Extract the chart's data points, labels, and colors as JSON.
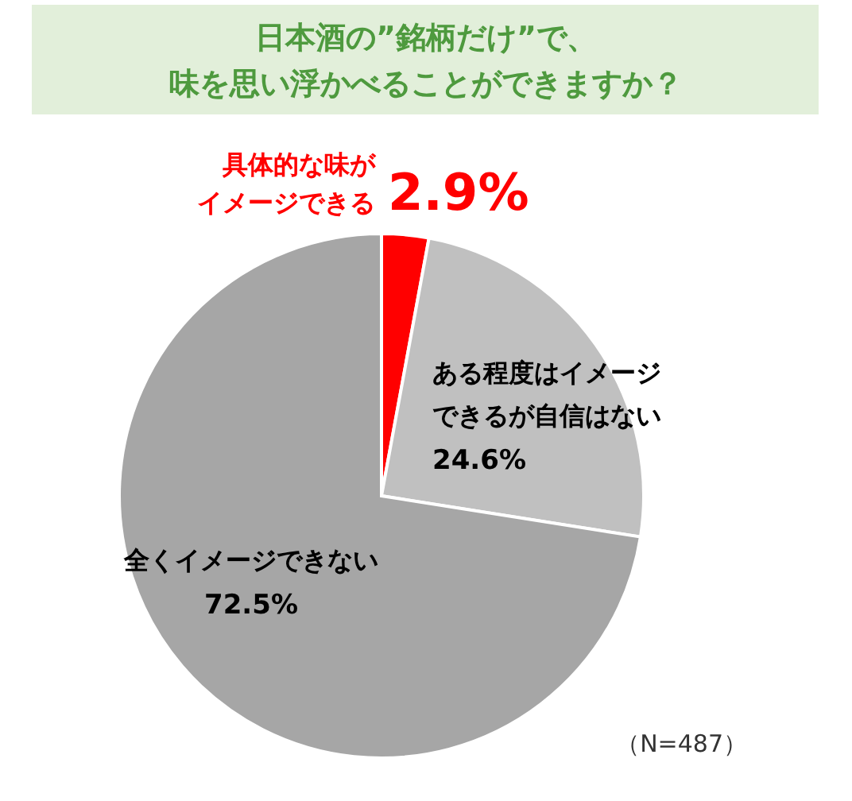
{
  "chart_data": {
    "type": "pie",
    "title": "日本酒の”銘柄だけ”で、味を思い浮かべることができますか？",
    "categories": [
      "具体的な味がイメージできる",
      "ある程度はイメージできるが自信はない",
      "全くイメージできない"
    ],
    "values": [
      2.9,
      24.6,
      72.5
    ],
    "colors": [
      "#ff0000",
      "#c0c0c0",
      "#a6a6a6"
    ],
    "value_labels": [
      "2.9%",
      "24.6%",
      "72.5%"
    ],
    "annotations": [
      "（N=487）"
    ]
  }
}
